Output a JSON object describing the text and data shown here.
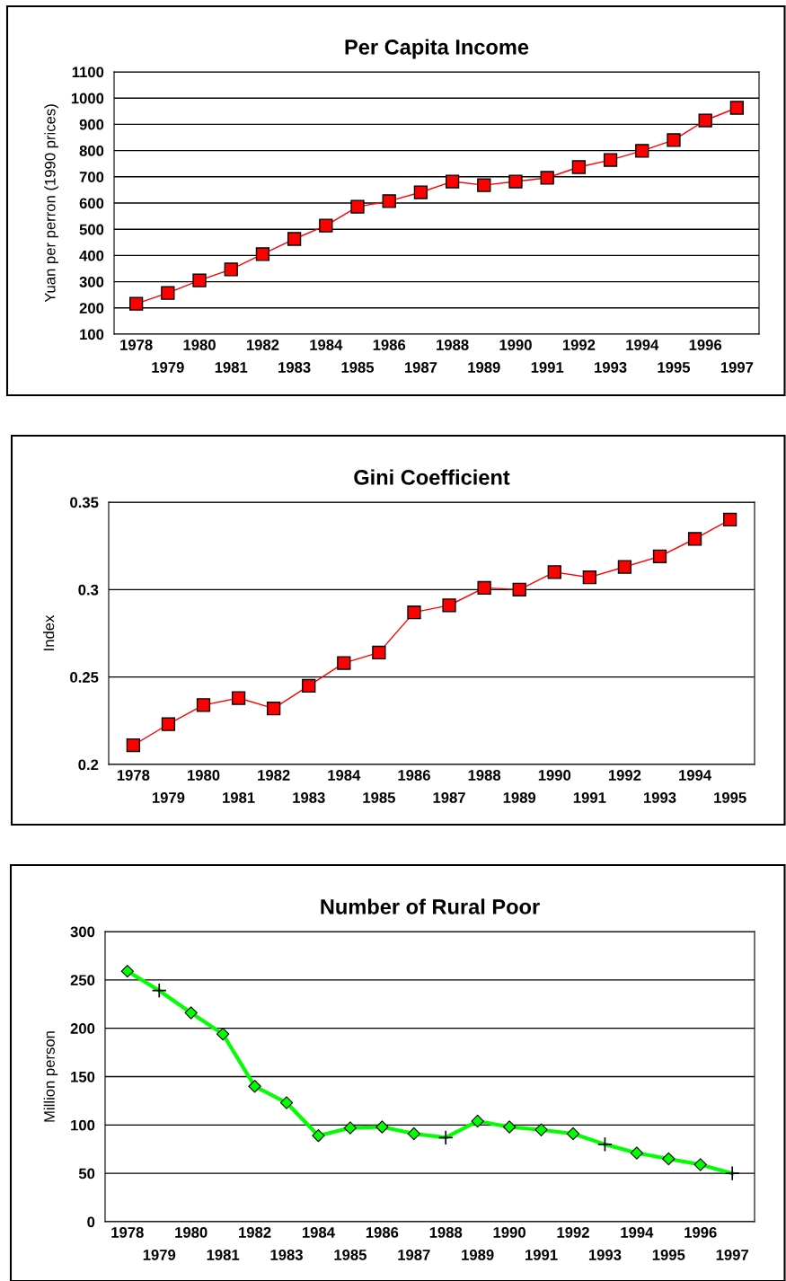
{
  "chart_data": [
    {
      "type": "line",
      "title": "Per Capita Income",
      "ylabel": "Yuan per perron (1990 prices)",
      "categories": [
        "1978",
        "1979",
        "1980",
        "1981",
        "1982",
        "1983",
        "1984",
        "1985",
        "1986",
        "1987",
        "1988",
        "1989",
        "1990",
        "1991",
        "1992",
        "1993",
        "1994",
        "1995",
        "1996",
        "1997"
      ],
      "series": [
        {
          "color": "#ff0000",
          "marker": "square",
          "values": [
            216,
            257,
            305,
            347,
            405,
            463,
            514,
            586,
            607,
            641,
            682,
            668,
            682,
            696,
            737,
            764,
            799,
            840,
            915,
            963
          ]
        }
      ],
      "ylim": [
        100,
        1100
      ],
      "yticks": [
        100,
        200,
        300,
        400,
        500,
        600,
        700,
        800,
        900,
        1000,
        1100
      ],
      "grid": "y",
      "legend": false
    },
    {
      "type": "line",
      "title": "Gini Coefficient",
      "ylabel": "Index",
      "categories": [
        "1978",
        "1979",
        "1980",
        "1981",
        "1982",
        "1983",
        "1984",
        "1985",
        "1986",
        "1987",
        "1988",
        "1989",
        "1990",
        "1991",
        "1992",
        "1993",
        "1994",
        "1995"
      ],
      "series": [
        {
          "color": "#ff0000",
          "marker": "square",
          "values": [
            0.211,
            0.223,
            0.234,
            0.238,
            0.232,
            0.245,
            0.258,
            0.264,
            0.287,
            0.291,
            0.301,
            0.3,
            0.31,
            0.307,
            0.313,
            0.319,
            0.329,
            0.34
          ]
        }
      ],
      "ylim": [
        0.2,
        0.35
      ],
      "yticks": [
        0.2,
        0.25,
        0.3,
        0.35
      ],
      "grid": "y",
      "legend": false
    },
    {
      "type": "line",
      "title": "Number of Rural Poor",
      "ylabel": "Million person",
      "categories": [
        "1978",
        "1979",
        "1980",
        "1981",
        "1982",
        "1983",
        "1984",
        "1985",
        "1986",
        "1987",
        "1988",
        "1989",
        "1990",
        "1991",
        "1992",
        "1993",
        "1994",
        "1995",
        "1996",
        "1997"
      ],
      "series": [
        {
          "color": "#00ff00",
          "marker": "none",
          "values": [
            259,
            239,
            216,
            194,
            140,
            123,
            89,
            97,
            98,
            91,
            87,
            104,
            98,
            95,
            91,
            80,
            71,
            65,
            59,
            50
          ]
        },
        {
          "type": "scatter",
          "color": "#00ff00",
          "marker": "diamond",
          "values": [
            259,
            null,
            216,
            194,
            140,
            123,
            89,
            97,
            98,
            91,
            null,
            104,
            98,
            95,
            91,
            null,
            71,
            65,
            59,
            null
          ]
        },
        {
          "type": "scatter",
          "color": "#000000",
          "marker": "cross",
          "values": [
            null,
            239,
            null,
            null,
            null,
            null,
            null,
            null,
            null,
            null,
            87,
            null,
            null,
            null,
            null,
            80,
            null,
            null,
            null,
            50
          ]
        }
      ],
      "ylim": [
        0,
        300
      ],
      "yticks": [
        0,
        50,
        100,
        150,
        200,
        250,
        300
      ],
      "grid": "y",
      "legend": false
    }
  ]
}
